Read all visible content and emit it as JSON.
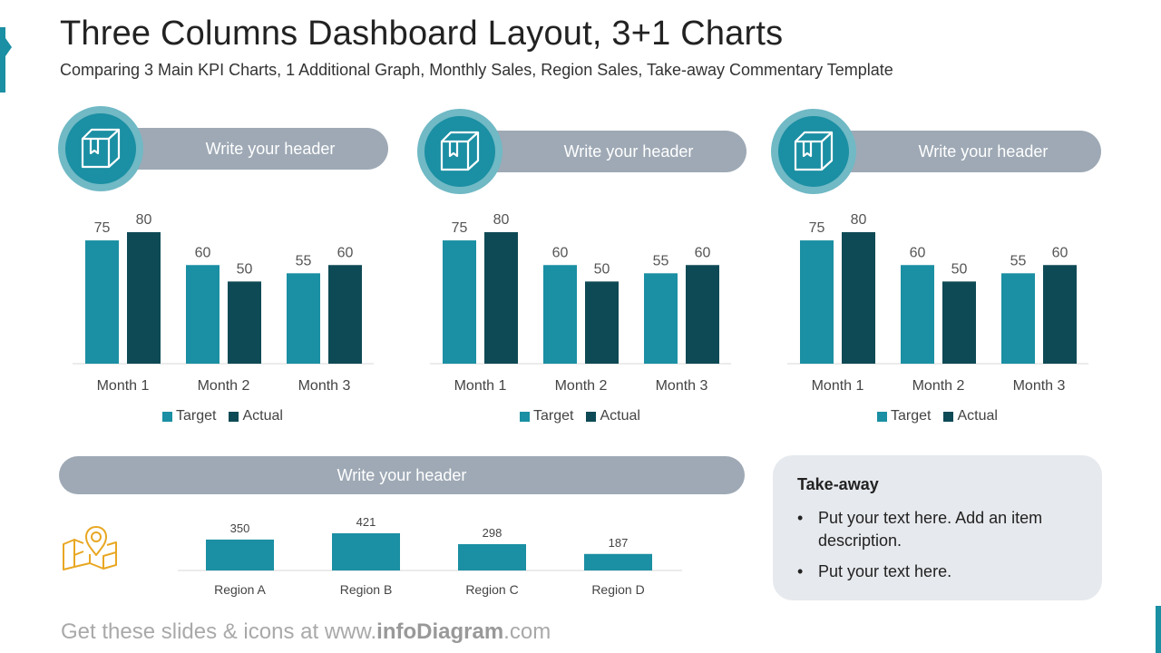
{
  "page": {
    "title": "Three Columns Dashboard Layout, 3+1 Charts",
    "subtitle": "Comparing 3 Main KPI Charts, 1 Additional Graph, Monthly Sales, Region Sales, Take-away Commentary Template"
  },
  "colors": {
    "accent": "#1b8fa3",
    "dark": "#0e4a55",
    "header_gray": "#9ea9b5",
    "map_icon": "#e8a722"
  },
  "icons": {
    "kpi": "box-icon",
    "region": "map-pin-icon"
  },
  "kpi_panels": [
    {
      "header": "Write your header"
    },
    {
      "header": "Write your header"
    },
    {
      "header": "Write your header"
    }
  ],
  "region_panel": {
    "header": "Write your header"
  },
  "takeaway": {
    "title": "Take-away",
    "items": [
      "Put your text here. Add an item description.",
      "Put your text here."
    ]
  },
  "footer": {
    "prefix": "Get these slides & icons at www.",
    "brand": "infoDiagram",
    "suffix": ".com"
  },
  "chart_data": [
    {
      "type": "bar",
      "categories": [
        "Month 1",
        "Month 2",
        "Month 3"
      ],
      "series": [
        {
          "name": "Target",
          "values": [
            75,
            60,
            55
          ],
          "color": "#1b8fa3"
        },
        {
          "name": "Actual",
          "values": [
            80,
            50,
            60
          ],
          "color": "#0e4a55"
        }
      ],
      "legend": "bottom",
      "grid": false
    },
    {
      "type": "bar",
      "categories": [
        "Month 1",
        "Month 2",
        "Month 3"
      ],
      "series": [
        {
          "name": "Target",
          "values": [
            75,
            60,
            55
          ],
          "color": "#1b8fa3"
        },
        {
          "name": "Actual",
          "values": [
            80,
            50,
            60
          ],
          "color": "#0e4a55"
        }
      ],
      "legend": "bottom",
      "grid": false
    },
    {
      "type": "bar",
      "categories": [
        "Month 1",
        "Month 2",
        "Month 3"
      ],
      "series": [
        {
          "name": "Target",
          "values": [
            75,
            60,
            55
          ],
          "color": "#1b8fa3"
        },
        {
          "name": "Actual",
          "values": [
            80,
            50,
            60
          ],
          "color": "#0e4a55"
        }
      ],
      "legend": "bottom",
      "grid": false
    },
    {
      "type": "bar",
      "categories": [
        "Region A",
        "Region B",
        "Region C",
        "Region D"
      ],
      "values": [
        350,
        421,
        298,
        187
      ],
      "color": "#1b8fa3",
      "grid": false
    }
  ]
}
